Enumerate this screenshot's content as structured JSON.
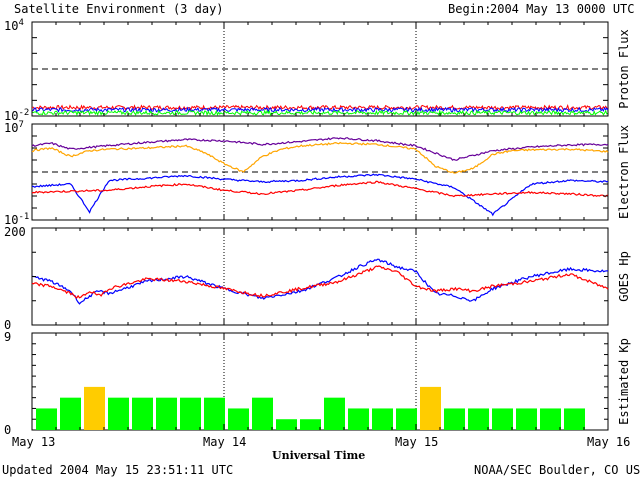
{
  "header": {
    "title": "Satellite Environment (3 day)",
    "begin_label": "Begin:",
    "begin_value": "2004 May 13 0000 UTC"
  },
  "footer": {
    "updated": "Updated 2004 May 15 23:51:11 UTC",
    "credit": "NOAA/SEC Boulder, CO USA"
  },
  "colors": {
    "red": "#ff0000",
    "blue": "#0000ff",
    "green": "#00ff00",
    "orange": "#ffa500",
    "purple": "#660099",
    "kp_green": "#00ff00",
    "kp_yellow": "#ffcc00"
  },
  "chart_data": [
    {
      "type": "line",
      "name": "proton-flux",
      "ylabel": "Proton Flux",
      "yscale": "log",
      "ylim": [
        0.01,
        10000
      ],
      "ytick_base": "10",
      "ytick_top_exp": "4",
      "ytick_bottom_exp": "-2",
      "threshold": 10,
      "series": [
        {
          "color": "red",
          "level": 0.035
        },
        {
          "color": "blue",
          "level": 0.025
        },
        {
          "color": "green",
          "level": 0.016
        }
      ]
    },
    {
      "type": "line",
      "name": "electron-flux",
      "ylabel": "Electron Flux",
      "yscale": "log",
      "ylim": [
        0.1,
        10000000
      ],
      "ytick_base": "10",
      "ytick_top_exp": "7",
      "ytick_bottom_exp": "-1",
      "threshold": 1000,
      "series": [
        {
          "color": "purple",
          "x": [
            0,
            0.1,
            0.2,
            0.4,
            0.6,
            0.8,
            1.0,
            1.2,
            1.4,
            1.6,
            1.8,
            2.0,
            2.2,
            2.4,
            2.6,
            2.8,
            3.0
          ],
          "y": [
            150000,
            250000,
            80000,
            160000,
            300000,
            500000,
            400000,
            200000,
            350000,
            700000,
            400000,
            150000,
            10000,
            60000,
            120000,
            180000,
            200000
          ]
        },
        {
          "color": "orange",
          "x": [
            0,
            0.1,
            0.2,
            0.3,
            0.4,
            0.6,
            0.8,
            0.9,
            1.0,
            1.1,
            1.2,
            1.3,
            1.4,
            1.6,
            1.8,
            2.0,
            2.1,
            2.2,
            2.3,
            2.4,
            2.5,
            2.6,
            2.8,
            3.0
          ],
          "y": [
            60000,
            100000,
            20000,
            60000,
            80000,
            100000,
            150000,
            40000,
            5000,
            1000,
            20000,
            80000,
            150000,
            250000,
            200000,
            80000,
            3000,
            800,
            2000,
            30000,
            60000,
            70000,
            80000,
            50000
          ]
        },
        {
          "color": "blue",
          "x": [
            0,
            0.2,
            0.3,
            0.4,
            0.6,
            0.8,
            1.0,
            1.2,
            1.4,
            1.6,
            1.8,
            2.0,
            2.2,
            2.4,
            2.6,
            2.8,
            3.0
          ],
          "y": [
            60,
            100,
            0.5,
            200,
            300,
            500,
            250,
            150,
            200,
            400,
            600,
            250,
            50,
            0.3,
            100,
            200,
            150
          ]
        },
        {
          "color": "red",
          "x": [
            0,
            0.2,
            0.4,
            0.6,
            0.8,
            1.0,
            1.2,
            1.4,
            1.6,
            1.8,
            2.0,
            2.2,
            2.4,
            2.6,
            2.8,
            3.0
          ],
          "y": [
            20,
            25,
            30,
            60,
            100,
            30,
            15,
            30,
            80,
            150,
            40,
            10,
            15,
            20,
            15,
            10
          ]
        }
      ]
    },
    {
      "type": "line",
      "name": "goes-hp",
      "ylabel": "GOES Hp",
      "ylim": [
        0,
        200
      ],
      "ytick_top": "200",
      "ytick_bottom": "0",
      "series": [
        {
          "color": "blue",
          "x": [
            0,
            0.1,
            0.2,
            0.25,
            0.3,
            0.35,
            0.4,
            0.6,
            0.8,
            1.0,
            1.2,
            1.4,
            1.6,
            1.7,
            1.8,
            1.9,
            2.0,
            2.1,
            2.2,
            2.3,
            2.4,
            2.6,
            2.8,
            3.0
          ],
          "y": [
            100,
            90,
            70,
            45,
            60,
            70,
            65,
            90,
            100,
            75,
            55,
            70,
            100,
            120,
            135,
            120,
            110,
            65,
            60,
            50,
            75,
            100,
            115,
            110
          ]
        },
        {
          "color": "red",
          "x": [
            0,
            0.1,
            0.2,
            0.25,
            0.3,
            0.35,
            0.4,
            0.6,
            0.8,
            1.0,
            1.2,
            1.4,
            1.6,
            1.7,
            1.8,
            1.9,
            2.0,
            2.1,
            2.2,
            2.3,
            2.4,
            2.6,
            2.8,
            3.0
          ],
          "y": [
            85,
            80,
            65,
            55,
            70,
            60,
            75,
            95,
            90,
            75,
            60,
            75,
            90,
            105,
            120,
            110,
            80,
            70,
            75,
            70,
            80,
            90,
            105,
            75
          ]
        }
      ]
    },
    {
      "type": "bar",
      "name": "estimated-kp",
      "ylabel": "Estimated Kp",
      "ylim": [
        0,
        9
      ],
      "ytick_top": "9",
      "ytick_bottom": "0",
      "storm_threshold": 4,
      "values": [
        2,
        3,
        4,
        3,
        3,
        3,
        3,
        3,
        2,
        3,
        1,
        1,
        3,
        2,
        2,
        2,
        4,
        2,
        2,
        2,
        2,
        2,
        2
      ]
    }
  ],
  "x_axis": {
    "label": "Universal Time",
    "ticks": [
      "May 13",
      "May 14",
      "May 15",
      "May 16"
    ]
  }
}
